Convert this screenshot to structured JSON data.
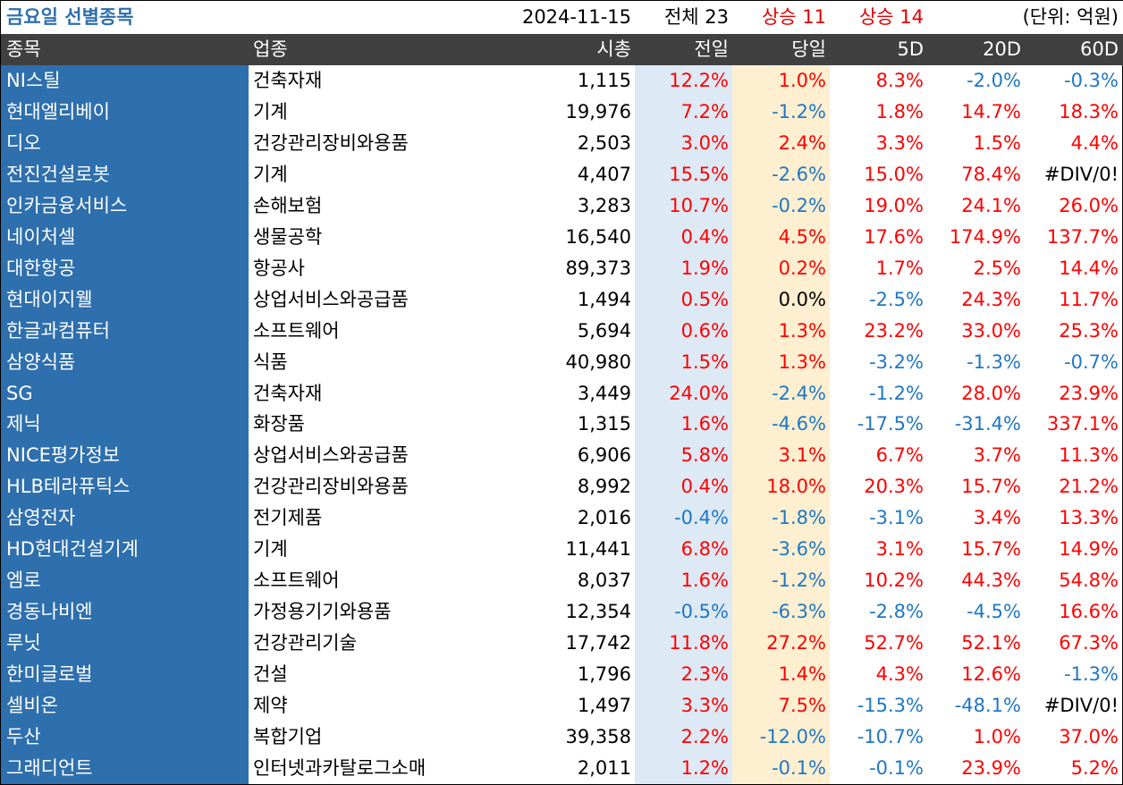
{
  "title": "금요일 선별종목",
  "date": "2024-11-15",
  "total_label": "전체 23",
  "up_today_label": "상승 11",
  "up_5d_label": "상승 14",
  "unit_label": "(단위: 억원)",
  "headers": [
    "종목",
    "업종",
    "시총",
    "전일",
    "당일",
    "5D",
    "20D",
    "60D"
  ],
  "rows": [
    [
      "NI스틸",
      "건축자재",
      "1,115",
      "12.2%",
      "1.0%",
      "8.3%",
      "-2.0%",
      "-0.3%"
    ],
    [
      "현대엘리베이",
      "기계",
      "19,976",
      "7.2%",
      "-1.2%",
      "1.8%",
      "14.7%",
      "18.3%"
    ],
    [
      "디오",
      "건강관리장비와용품",
      "2,503",
      "3.0%",
      "2.4%",
      "3.3%",
      "1.5%",
      "4.4%"
    ],
    [
      "전진건설로봇",
      "기계",
      "4,407",
      "15.5%",
      "-2.6%",
      "15.0%",
      "78.4%",
      "#DIV/0!"
    ],
    [
      "인카금융서비스",
      "손해보험",
      "3,283",
      "10.7%",
      "-0.2%",
      "19.0%",
      "24.1%",
      "26.0%"
    ],
    [
      "네이처셀",
      "생물공학",
      "16,540",
      "0.4%",
      "4.5%",
      "17.6%",
      "174.9%",
      "137.7%"
    ],
    [
      "대한항공",
      "항공사",
      "89,373",
      "1.9%",
      "0.2%",
      "1.7%",
      "2.5%",
      "14.4%"
    ],
    [
      "현대이지웰",
      "상업서비스와공급품",
      "1,494",
      "0.5%",
      "0.0%",
      "-2.5%",
      "24.3%",
      "11.7%"
    ],
    [
      "한글과컴퓨터",
      "소프트웨어",
      "5,694",
      "0.6%",
      "1.3%",
      "23.2%",
      "33.0%",
      "25.3%"
    ],
    [
      "삼양식품",
      "식품",
      "40,980",
      "1.5%",
      "1.3%",
      "-3.2%",
      "-1.3%",
      "-0.7%"
    ],
    [
      "SG",
      "건축자재",
      "3,449",
      "24.0%",
      "-2.4%",
      "-1.2%",
      "28.0%",
      "23.9%"
    ],
    [
      "제닉",
      "화장품",
      "1,315",
      "1.6%",
      "-4.6%",
      "-17.5%",
      "-31.4%",
      "337.1%"
    ],
    [
      "NICE평가정보",
      "상업서비스와공급품",
      "6,906",
      "5.8%",
      "3.1%",
      "6.7%",
      "3.7%",
      "11.3%"
    ],
    [
      "HLB테라퓨틱스",
      "건강관리장비와용품",
      "8,992",
      "0.4%",
      "18.0%",
      "20.3%",
      "15.7%",
      "21.2%"
    ],
    [
      "삼영전자",
      "전기제품",
      "2,016",
      "-0.4%",
      "-1.8%",
      "-3.1%",
      "3.4%",
      "13.3%"
    ],
    [
      "HD현대건설기계",
      "기계",
      "11,441",
      "6.8%",
      "-3.6%",
      "3.1%",
      "15.7%",
      "14.9%"
    ],
    [
      "엠로",
      "소프트웨어",
      "8,037",
      "1.6%",
      "-1.2%",
      "10.2%",
      "44.3%",
      "54.8%"
    ],
    [
      "경동나비엔",
      "가정용기기와용품",
      "12,354",
      "-0.5%",
      "-6.3%",
      "-2.8%",
      "-4.5%",
      "16.6%"
    ],
    [
      "루닛",
      "건강관리기술",
      "17,742",
      "11.8%",
      "27.2%",
      "52.7%",
      "52.1%",
      "67.3%"
    ],
    [
      "한미글로벌",
      "건설",
      "1,796",
      "2.3%",
      "1.4%",
      "4.3%",
      "12.6%",
      "-1.3%"
    ],
    [
      "셀비온",
      "제약",
      "1,497",
      "3.3%",
      "7.5%",
      "-15.3%",
      "-48.1%",
      "#DIV/0!"
    ],
    [
      "두산",
      "복합기업",
      "39,358",
      "2.2%",
      "-12.0%",
      "-10.7%",
      "1.0%",
      "37.0%"
    ],
    [
      "그래디언트",
      "인터넷과카탈로그소매",
      "2,011",
      "1.2%",
      "-0.1%",
      "-0.1%",
      "23.9%",
      "5.2%"
    ]
  ],
  "colors": {
    "name_column_bg": "#2e6fad",
    "header_bg": "#404040",
    "prev_day_bg": "#dde9f5",
    "today_bg": "#fdefd0",
    "positive": "#ff0000",
    "negative": "#1f77c4"
  }
}
